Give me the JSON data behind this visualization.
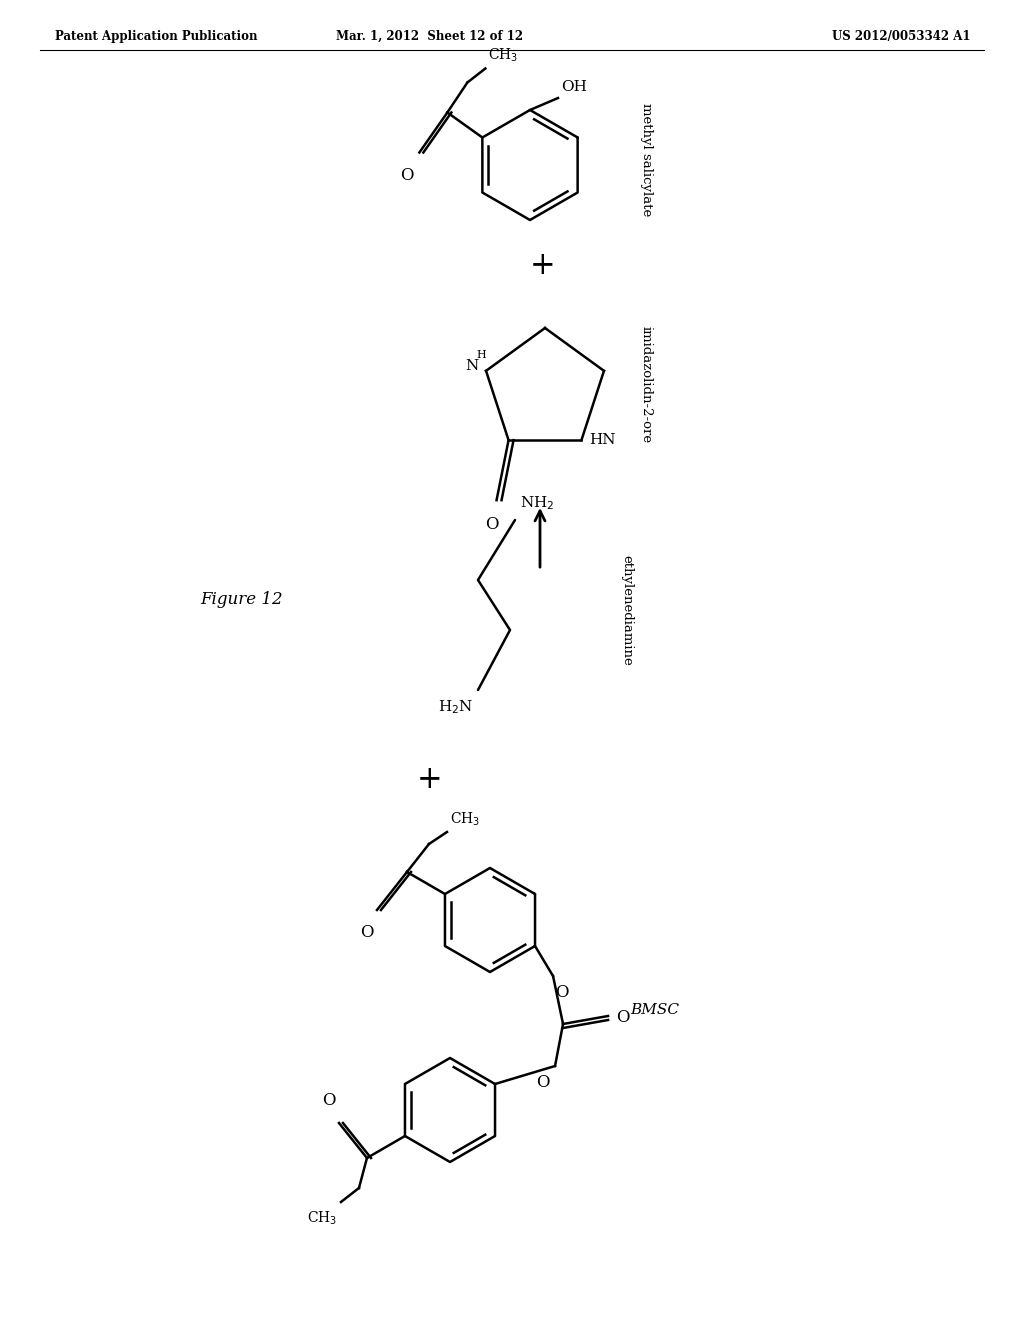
{
  "header_left": "Patent Application Publication",
  "header_mid": "Mar. 1, 2012  Sheet 12 of 12",
  "header_right": "US 2012/0053342 A1",
  "figure_label": "Figure 12",
  "background_color": "#ffffff",
  "line_color": "#000000"
}
